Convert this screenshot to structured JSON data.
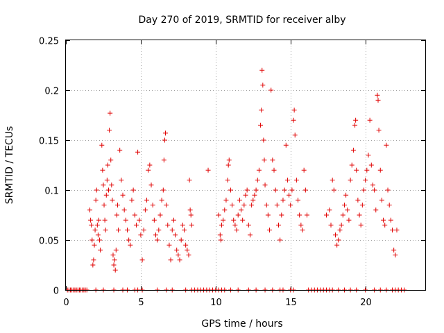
{
  "chart_data": {
    "type": "scatter",
    "title": "Day 270 of 2019, SRMTID for receiver alby",
    "xlabel": "GPS time / hours",
    "ylabel": "SRMTID / TECUs",
    "xlim": [
      0,
      24
    ],
    "ylim": [
      0,
      0.25
    ],
    "xticks": [
      0,
      5,
      10,
      15,
      20
    ],
    "xtick_labels": [
      "0",
      "5",
      "10",
      "15",
      "20"
    ],
    "yticks": [
      0,
      0.05,
      0.1,
      0.15,
      0.2,
      0.25
    ],
    "ytick_labels": [
      "0",
      "0.05",
      "0.1",
      "0.15",
      "0.2",
      "0.25"
    ],
    "grid": true,
    "marker": "+",
    "color": "#e00000",
    "series": [
      {
        "name": "SRMTID",
        "points": [
          [
            0.1,
            0
          ],
          [
            0.2,
            0
          ],
          [
            0.3,
            0
          ],
          [
            0.4,
            0
          ],
          [
            0.5,
            0
          ],
          [
            0.6,
            0
          ],
          [
            0.7,
            0
          ],
          [
            0.8,
            0
          ],
          [
            0.9,
            0
          ],
          [
            1.0,
            0
          ],
          [
            1.1,
            0
          ],
          [
            1.2,
            0
          ],
          [
            1.3,
            0
          ],
          [
            1.4,
            0
          ],
          [
            1.6,
            0.08
          ],
          [
            1.65,
            0.07
          ],
          [
            1.7,
            0.065
          ],
          [
            1.75,
            0.05
          ],
          [
            1.8,
            0.025
          ],
          [
            1.85,
            0.03
          ],
          [
            1.9,
            0.045
          ],
          [
            1.95,
            0.06
          ],
          [
            2.0,
            0.09
          ],
          [
            2.05,
            0.1
          ],
          [
            2.1,
            0.065
          ],
          [
            2.15,
            0.055
          ],
          [
            2.2,
            0.07
          ],
          [
            2.25,
            0.05
          ],
          [
            2.3,
            0.04
          ],
          [
            2.4,
            0.145
          ],
          [
            2.45,
            0.12
          ],
          [
            2.5,
            0.105
          ],
          [
            2.55,
            0.085
          ],
          [
            2.6,
            0.07
          ],
          [
            2.65,
            0.06
          ],
          [
            2.7,
            0.095
          ],
          [
            2.75,
            0.11
          ],
          [
            2.8,
            0.125
          ],
          [
            2.85,
            0.1
          ],
          [
            2.9,
            0.16
          ],
          [
            2.95,
            0.177
          ],
          [
            3.0,
            0.13
          ],
          [
            3.05,
            0.105
          ],
          [
            3.1,
            0.09
          ],
          [
            3.15,
            0.035
          ],
          [
            3.2,
            0.025
          ],
          [
            3.25,
            0.03
          ],
          [
            3.3,
            0.02
          ],
          [
            3.35,
            0.04
          ],
          [
            3.4,
            0.075
          ],
          [
            3.45,
            0.085
          ],
          [
            3.5,
            0.06
          ],
          [
            3.6,
            0.14
          ],
          [
            3.7,
            0.11
          ],
          [
            3.8,
            0.095
          ],
          [
            3.9,
            0.08
          ],
          [
            4.0,
            0.07
          ],
          [
            4.1,
            0.06
          ],
          [
            4.2,
            0.05
          ],
          [
            4.3,
            0.045
          ],
          [
            4.4,
            0.09
          ],
          [
            4.5,
            0.1
          ],
          [
            4.6,
            0.075
          ],
          [
            4.7,
            0.065
          ],
          [
            4.8,
            0.138
          ],
          [
            4.9,
            0.07
          ],
          [
            5.0,
            0.055
          ],
          [
            5.1,
            0.03
          ],
          [
            5.2,
            0.06
          ],
          [
            5.3,
            0.08
          ],
          [
            5.4,
            0.09
          ],
          [
            5.5,
            0.12
          ],
          [
            5.6,
            0.125
          ],
          [
            5.7,
            0.105
          ],
          [
            5.8,
            0.085
          ],
          [
            5.9,
            0.07
          ],
          [
            6.0,
            0.055
          ],
          [
            6.1,
            0.05
          ],
          [
            6.2,
            0.06
          ],
          [
            6.3,
            0.075
          ],
          [
            6.4,
            0.09
          ],
          [
            6.5,
            0.1
          ],
          [
            6.55,
            0.13
          ],
          [
            6.6,
            0.15
          ],
          [
            6.65,
            0.157
          ],
          [
            6.7,
            0.085
          ],
          [
            6.8,
            0.065
          ],
          [
            6.9,
            0.045
          ],
          [
            7.0,
            0.03
          ],
          [
            7.1,
            0.06
          ],
          [
            7.2,
            0.07
          ],
          [
            7.3,
            0.055
          ],
          [
            7.4,
            0.04
          ],
          [
            7.5,
            0.035
          ],
          [
            7.6,
            0.03
          ],
          [
            7.7,
            0.05
          ],
          [
            7.8,
            0.065
          ],
          [
            7.9,
            0.06
          ],
          [
            8.0,
            0.045
          ],
          [
            8.1,
            0.04
          ],
          [
            8.2,
            0.035
          ],
          [
            8.25,
            0.11
          ],
          [
            8.3,
            0.08
          ],
          [
            8.35,
            0.075
          ],
          [
            8.4,
            0.065
          ],
          [
            2.0,
            0
          ],
          [
            2.5,
            0
          ],
          [
            3.2,
            0
          ],
          [
            3.8,
            0
          ],
          [
            4.1,
            0
          ],
          [
            4.6,
            0
          ],
          [
            4.8,
            0
          ],
          [
            5.1,
            0
          ],
          [
            6.1,
            0
          ],
          [
            6.7,
            0
          ],
          [
            7.1,
            0
          ],
          [
            8.0,
            0
          ],
          [
            8.4,
            0
          ],
          [
            8.6,
            0
          ],
          [
            8.8,
            0
          ],
          [
            9.0,
            0
          ],
          [
            9.2,
            0
          ],
          [
            9.4,
            0
          ],
          [
            9.6,
            0
          ],
          [
            9.8,
            0
          ],
          [
            10.0,
            0
          ],
          [
            10.2,
            0
          ],
          [
            9.5,
            0.12
          ],
          [
            10.2,
            0.075
          ],
          [
            10.3,
            0.055
          ],
          [
            10.35,
            0.05
          ],
          [
            10.4,
            0.065
          ],
          [
            10.5,
            0.07
          ],
          [
            10.6,
            0.08
          ],
          [
            10.7,
            0.09
          ],
          [
            10.8,
            0.11
          ],
          [
            10.85,
            0.125
          ],
          [
            10.9,
            0.13
          ],
          [
            11.0,
            0.1
          ],
          [
            11.1,
            0.085
          ],
          [
            11.2,
            0.07
          ],
          [
            11.3,
            0.065
          ],
          [
            11.4,
            0.06
          ],
          [
            11.5,
            0.075
          ],
          [
            11.6,
            0.09
          ],
          [
            11.7,
            0.08
          ],
          [
            11.8,
            0.07
          ],
          [
            11.9,
            0.085
          ],
          [
            12.0,
            0.095
          ],
          [
            12.1,
            0.1
          ],
          [
            12.2,
            0.065
          ],
          [
            12.3,
            0.055
          ],
          [
            12.4,
            0.085
          ],
          [
            12.5,
            0.09
          ],
          [
            12.6,
            0.095
          ],
          [
            12.7,
            0.1
          ],
          [
            12.8,
            0.11
          ],
          [
            12.9,
            0.12
          ],
          [
            13.0,
            0.165
          ],
          [
            13.05,
            0.18
          ],
          [
            13.1,
            0.22
          ],
          [
            13.15,
            0.205
          ],
          [
            13.2,
            0.15
          ],
          [
            13.25,
            0.13
          ],
          [
            13.3,
            0.105
          ],
          [
            13.4,
            0.085
          ],
          [
            13.5,
            0.075
          ],
          [
            13.6,
            0.06
          ],
          [
            13.7,
            0.2
          ],
          [
            13.8,
            0.13
          ],
          [
            13.9,
            0.12
          ],
          [
            14.0,
            0.1
          ],
          [
            14.1,
            0.085
          ],
          [
            14.2,
            0.065
          ],
          [
            14.3,
            0.05
          ],
          [
            14.4,
            0.075
          ],
          [
            14.5,
            0.09
          ],
          [
            14.6,
            0.1
          ],
          [
            14.7,
            0.145
          ],
          [
            14.8,
            0.11
          ],
          [
            14.9,
            0.095
          ],
          [
            15.0,
            0.085
          ],
          [
            15.1,
            0.1
          ],
          [
            15.2,
            0.17
          ],
          [
            15.25,
            0.18
          ],
          [
            15.3,
            0.155
          ],
          [
            15.4,
            0.11
          ],
          [
            15.5,
            0.09
          ],
          [
            15.6,
            0.075
          ],
          [
            15.7,
            0.065
          ],
          [
            15.8,
            0.06
          ],
          [
            15.9,
            0.12
          ],
          [
            16.0,
            0.1
          ],
          [
            16.1,
            0.075
          ],
          [
            10.4,
            0
          ],
          [
            10.6,
            0
          ],
          [
            11.0,
            0
          ],
          [
            11.5,
            0
          ],
          [
            12.2,
            0
          ],
          [
            12.7,
            0
          ],
          [
            13.3,
            0
          ],
          [
            13.8,
            0
          ],
          [
            14.3,
            0
          ],
          [
            14.5,
            0
          ],
          [
            15.0,
            0
          ],
          [
            15.2,
            0
          ],
          [
            16.2,
            0
          ],
          [
            16.4,
            0
          ],
          [
            16.6,
            0
          ],
          [
            16.8,
            0
          ],
          [
            17.0,
            0
          ],
          [
            17.2,
            0
          ],
          [
            17.4,
            0
          ],
          [
            17.6,
            0
          ],
          [
            17.4,
            0.075
          ],
          [
            17.6,
            0.08
          ],
          [
            17.7,
            0.065
          ],
          [
            17.8,
            0.11
          ],
          [
            17.9,
            0.1
          ],
          [
            18.0,
            0.055
          ],
          [
            18.1,
            0.045
          ],
          [
            18.2,
            0.05
          ],
          [
            18.3,
            0.06
          ],
          [
            18.4,
            0.065
          ],
          [
            18.5,
            0.075
          ],
          [
            18.6,
            0.085
          ],
          [
            18.7,
            0.095
          ],
          [
            18.8,
            0.08
          ],
          [
            18.9,
            0.07
          ],
          [
            19.0,
            0.11
          ],
          [
            19.1,
            0.125
          ],
          [
            19.2,
            0.14
          ],
          [
            19.3,
            0.165
          ],
          [
            19.35,
            0.17
          ],
          [
            19.4,
            0.12
          ],
          [
            19.5,
            0.09
          ],
          [
            19.6,
            0.075
          ],
          [
            19.7,
            0.065
          ],
          [
            19.8,
            0.085
          ],
          [
            19.9,
            0.1
          ],
          [
            20.0,
            0.11
          ],
          [
            20.1,
            0.12
          ],
          [
            20.2,
            0.135
          ],
          [
            20.3,
            0.17
          ],
          [
            20.4,
            0.125
          ],
          [
            20.5,
            0.105
          ],
          [
            20.6,
            0.1
          ],
          [
            20.7,
            0.08
          ],
          [
            20.8,
            0.195
          ],
          [
            20.85,
            0.19
          ],
          [
            20.9,
            0.16
          ],
          [
            21.0,
            0.12
          ],
          [
            21.1,
            0.09
          ],
          [
            21.2,
            0.07
          ],
          [
            21.3,
            0.065
          ],
          [
            21.4,
            0.145
          ],
          [
            21.5,
            0.1
          ],
          [
            21.6,
            0.085
          ],
          [
            21.7,
            0.07
          ],
          [
            21.8,
            0.06
          ],
          [
            21.9,
            0.04
          ],
          [
            22.0,
            0.035
          ],
          [
            22.1,
            0.06
          ],
          [
            17.8,
            0
          ],
          [
            18.2,
            0
          ],
          [
            18.6,
            0
          ],
          [
            19.0,
            0
          ],
          [
            19.4,
            0
          ],
          [
            20.0,
            0
          ],
          [
            20.6,
            0
          ],
          [
            21.0,
            0
          ],
          [
            21.4,
            0
          ],
          [
            21.8,
            0
          ],
          [
            22.0,
            0
          ],
          [
            22.2,
            0
          ],
          [
            22.4,
            0
          ],
          [
            22.6,
            0
          ]
        ]
      }
    ]
  }
}
